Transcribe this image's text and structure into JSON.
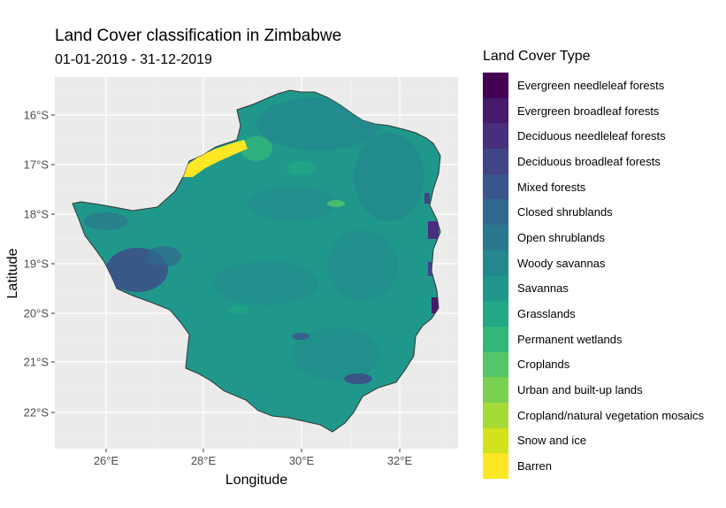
{
  "title": "Land Cover classification in Zimbabwe",
  "subtitle": "01-01-2019 - 31-12-2019",
  "xlabel": "Longitude",
  "ylabel": "Latitude",
  "x_ticks": [
    "26°E",
    "28°E",
    "30°E",
    "32°E"
  ],
  "y_ticks": [
    "16°S",
    "17°S",
    "18°S",
    "19°S",
    "20°S",
    "21°S",
    "22°S"
  ],
  "legend": {
    "title": "Land Cover Type",
    "items": [
      {
        "label": "Evergreen needleleaf forests",
        "color": "#440154"
      },
      {
        "label": "Evergreen broadleaf forests",
        "color": "#481A6C"
      },
      {
        "label": "Deciduous needleleaf forests",
        "color": "#472F7D"
      },
      {
        "label": "Deciduous broadleaf forests",
        "color": "#414487"
      },
      {
        "label": "Mixed forests",
        "color": "#39568C"
      },
      {
        "label": "Closed shrublands",
        "color": "#31688E"
      },
      {
        "label": "Open shrublands",
        "color": "#2A788E"
      },
      {
        "label": "Woody savannas",
        "color": "#23888E"
      },
      {
        "label": "Savannas",
        "color": "#1F988B"
      },
      {
        "label": "Grasslands",
        "color": "#22A884"
      },
      {
        "label": "Permanent wetlands",
        "color": "#35B779"
      },
      {
        "label": "Croplands",
        "color": "#54C568"
      },
      {
        "label": "Urban and built-up lands",
        "color": "#7AD151"
      },
      {
        "label": "Cropland/natural vegetation mosaics",
        "color": "#A5DB36"
      },
      {
        "label": "Snow and ice",
        "color": "#D2E21B"
      },
      {
        "label": "Barren",
        "color": "#FDE725"
      }
    ]
  }
}
